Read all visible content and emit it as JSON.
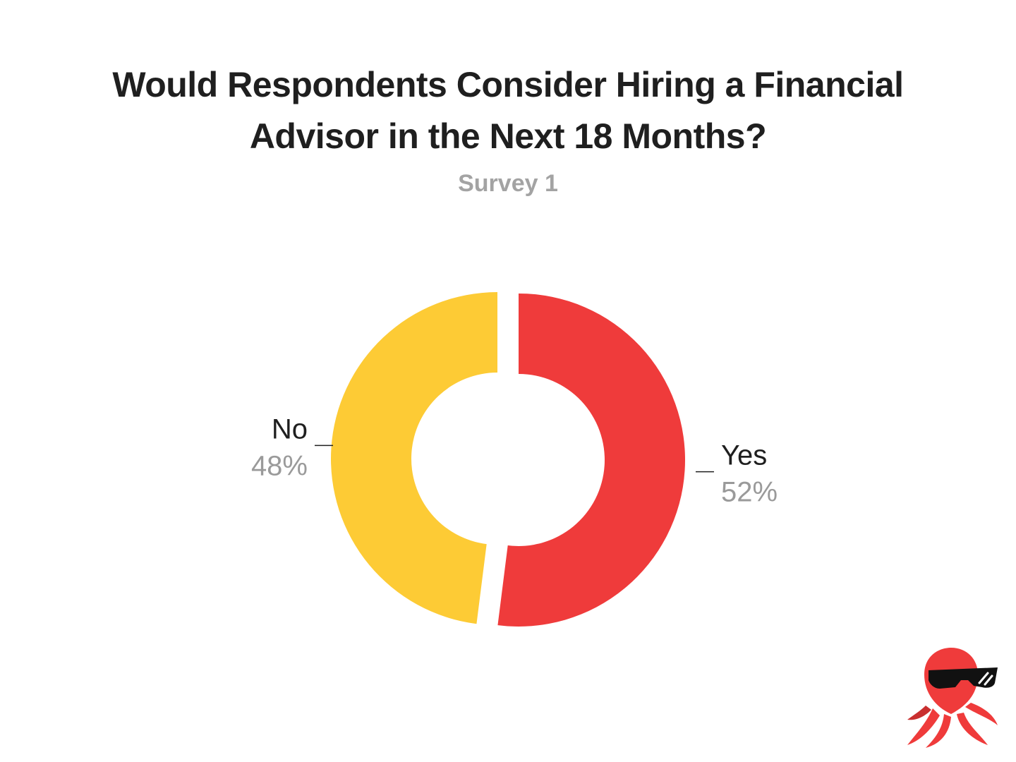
{
  "chart_data": {
    "type": "pie",
    "style": "donut",
    "title_lines": [
      "Would Respondents Consider Hiring a Financial",
      "Advisor in the Next 18 Months?"
    ],
    "subtitle": "Survey 1",
    "slices": [
      {
        "label": "Yes",
        "value": 52,
        "value_label": "52%",
        "color": "#ef3b3b"
      },
      {
        "label": "No",
        "value": 48,
        "value_label": "48%",
        "color": "#fdcb35"
      }
    ]
  },
  "brand": {
    "logo_icon": "octopus-with-sunglasses-icon",
    "logo_color": "#ef3b3b"
  }
}
